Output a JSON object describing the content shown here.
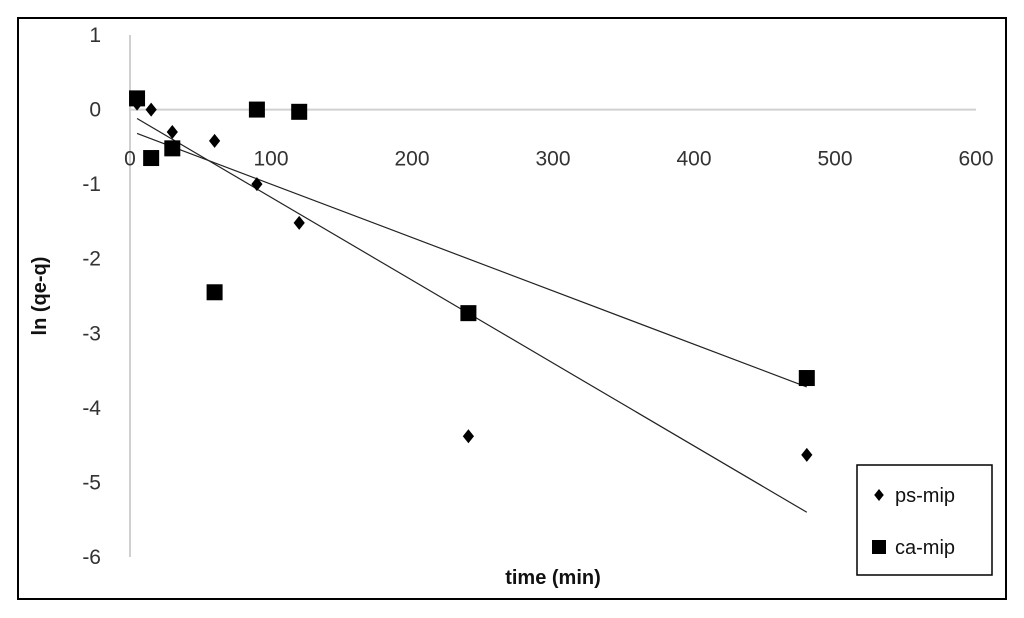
{
  "chart_data": {
    "type": "scatter",
    "title": "",
    "xlabel": "time (min)",
    "ylabel": "ln (qe-q)",
    "xlim": [
      0,
      600
    ],
    "ylim": [
      -6,
      1
    ],
    "xticks": [
      0,
      100,
      200,
      300,
      400,
      500,
      600
    ],
    "yticks": [
      1,
      0,
      -1,
      -2,
      -3,
      -4,
      -5,
      -6
    ],
    "grid": false,
    "legend": "bottom-right",
    "series": [
      {
        "name": "ps-mip",
        "marker": "diamond",
        "color": "#000000",
        "x": [
          5,
          15,
          30,
          60,
          90,
          120,
          240,
          480
        ],
        "y": [
          0.08,
          0.0,
          -0.3,
          -0.42,
          -1.0,
          -1.52,
          -4.38,
          -4.63
        ],
        "trendline": {
          "x": [
            5,
            480
          ],
          "y": [
            -0.12,
            -5.4
          ]
        }
      },
      {
        "name": "ca-mip",
        "marker": "square",
        "color": "#000000",
        "x": [
          5,
          15,
          30,
          60,
          90,
          120,
          240,
          480
        ],
        "y": [
          0.15,
          -0.65,
          -0.52,
          -2.45,
          0.0,
          -0.03,
          -2.73,
          -3.6
        ],
        "trendline": {
          "x": [
            5,
            480
          ],
          "y": [
            -0.32,
            -3.72
          ]
        }
      }
    ]
  }
}
